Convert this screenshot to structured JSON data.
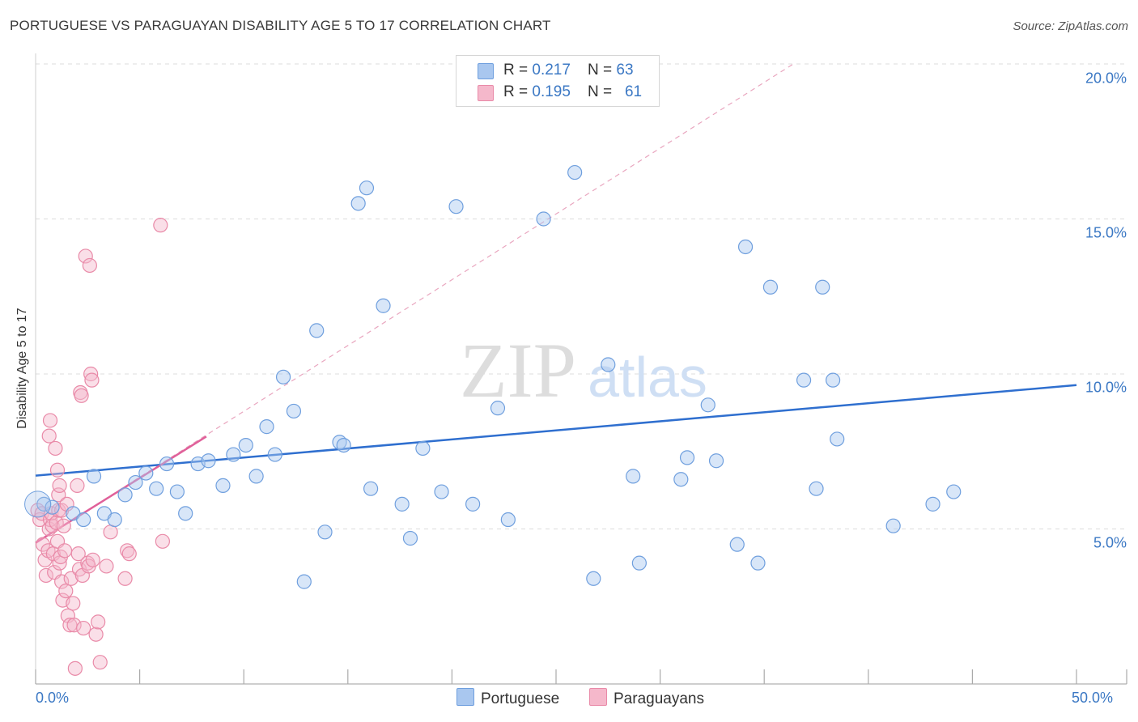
{
  "title": "PORTUGUESE VS PARAGUAYAN DISABILITY AGE 5 TO 17 CORRELATION CHART",
  "source": "Source: ZipAtlas.com",
  "watermark": {
    "zip": "ZIP",
    "atlas": "atlas"
  },
  "colors": {
    "portuguese_fill": "#a9c7ef",
    "portuguese_stroke": "#6f9fde",
    "portuguese_line": "#2f6fcf",
    "paraguayan_fill": "#f5b8cb",
    "paraguayan_stroke": "#e98aa8",
    "paraguayan_line": "#e0609a",
    "axis_label": "#3b78c4",
    "grid": "#dcdcdc"
  },
  "legend": {
    "row1": {
      "r_label": "R = ",
      "r_value": "0.217",
      "n_label": "N = ",
      "n_value": "63"
    },
    "row2": {
      "r_label": "R = ",
      "r_value": "0.195",
      "n_label": "N = ",
      "n_value": "61"
    }
  },
  "chart_data": {
    "type": "scatter",
    "title": "PORTUGUESE VS PARAGUAYAN DISABILITY AGE 5 TO 17 CORRELATION CHART",
    "xlabel": "",
    "ylabel": "Disability Age 5 to 17",
    "xlim": [
      0,
      50
    ],
    "ylim": [
      0,
      20
    ],
    "x_tick_labels": [
      "0.0%",
      "50.0%"
    ],
    "y_tick_labels": [
      "5.0%",
      "10.0%",
      "15.0%",
      "20.0%"
    ],
    "y_ticks": [
      5,
      10,
      15,
      20
    ],
    "grid": true,
    "legend_entries": [
      "Portuguese",
      "Paraguayans"
    ],
    "series": [
      {
        "name": "Portuguese",
        "r": 0.217,
        "n": 63,
        "trend": {
          "x": [
            0,
            50
          ],
          "y": [
            6.72,
            9.64
          ]
        },
        "points": [
          [
            0.4,
            5.8
          ],
          [
            0.8,
            5.7
          ],
          [
            1.8,
            5.5
          ],
          [
            2.3,
            5.3
          ],
          [
            2.8,
            6.7
          ],
          [
            3.3,
            5.5
          ],
          [
            3.8,
            5.3
          ],
          [
            4.3,
            6.1
          ],
          [
            4.8,
            6.5
          ],
          [
            5.3,
            6.8
          ],
          [
            5.8,
            6.3
          ],
          [
            6.3,
            7.1
          ],
          [
            6.8,
            6.2
          ],
          [
            7.2,
            5.5
          ],
          [
            7.8,
            7.1
          ],
          [
            8.3,
            7.2
          ],
          [
            9.0,
            6.4
          ],
          [
            9.5,
            7.4
          ],
          [
            10.1,
            7.7
          ],
          [
            10.6,
            6.7
          ],
          [
            11.1,
            8.3
          ],
          [
            11.5,
            7.4
          ],
          [
            11.9,
            9.9
          ],
          [
            12.4,
            8.8
          ],
          [
            12.9,
            3.3
          ],
          [
            13.5,
            11.4
          ],
          [
            13.9,
            4.9
          ],
          [
            14.6,
            7.8
          ],
          [
            14.8,
            7.7
          ],
          [
            15.5,
            15.5
          ],
          [
            15.9,
            16.0
          ],
          [
            16.1,
            6.3
          ],
          [
            16.7,
            12.2
          ],
          [
            17.6,
            5.8
          ],
          [
            18.0,
            4.7
          ],
          [
            18.6,
            7.6
          ],
          [
            19.5,
            6.2
          ],
          [
            20.2,
            15.4
          ],
          [
            21.0,
            5.8
          ],
          [
            22.2,
            8.9
          ],
          [
            22.7,
            5.3
          ],
          [
            24.4,
            15.0
          ],
          [
            25.9,
            16.5
          ],
          [
            26.8,
            3.4
          ],
          [
            27.5,
            10.3
          ],
          [
            28.7,
            6.7
          ],
          [
            29.0,
            3.9
          ],
          [
            31.0,
            6.6
          ],
          [
            31.3,
            7.3
          ],
          [
            32.3,
            9.0
          ],
          [
            32.7,
            7.2
          ],
          [
            33.7,
            4.5
          ],
          [
            34.7,
            3.9
          ],
          [
            34.1,
            14.1
          ],
          [
            35.3,
            12.8
          ],
          [
            36.9,
            9.8
          ],
          [
            37.8,
            12.8
          ],
          [
            37.5,
            6.3
          ],
          [
            38.5,
            7.9
          ],
          [
            38.3,
            9.8
          ],
          [
            41.2,
            5.1
          ],
          [
            43.1,
            5.8
          ],
          [
            44.1,
            6.2
          ]
        ]
      },
      {
        "name": "Paraguayans",
        "r": 0.195,
        "n": 61,
        "trend": {
          "x": [
            0,
            8.2
          ],
          "y": [
            4.55,
            7.98
          ],
          "extended": {
            "x": [
              0,
              36.4
            ],
            "y": [
              4.55,
              20
            ]
          }
        },
        "points": [
          [
            0.1,
            5.6
          ],
          [
            0.2,
            5.3
          ],
          [
            0.3,
            5.5
          ],
          [
            0.35,
            4.5
          ],
          [
            0.45,
            4.0
          ],
          [
            0.5,
            3.5
          ],
          [
            0.6,
            4.3
          ],
          [
            0.65,
            5.0
          ],
          [
            0.7,
            5.3
          ],
          [
            0.75,
            5.5
          ],
          [
            0.8,
            5.1
          ],
          [
            0.85,
            4.2
          ],
          [
            0.9,
            3.6
          ],
          [
            1.0,
            5.2
          ],
          [
            1.05,
            4.6
          ],
          [
            1.1,
            5.6
          ],
          [
            1.15,
            3.9
          ],
          [
            1.2,
            4.1
          ],
          [
            1.25,
            3.3
          ],
          [
            1.3,
            2.7
          ],
          [
            1.35,
            5.1
          ],
          [
            1.4,
            4.3
          ],
          [
            1.45,
            3.0
          ],
          [
            0.7,
            8.5
          ],
          [
            0.65,
            8.0
          ],
          [
            0.95,
            7.6
          ],
          [
            1.05,
            6.9
          ],
          [
            1.1,
            6.1
          ],
          [
            1.15,
            6.4
          ],
          [
            1.25,
            5.6
          ],
          [
            1.5,
            5.8
          ],
          [
            1.55,
            2.2
          ],
          [
            1.65,
            1.9
          ],
          [
            1.7,
            3.4
          ],
          [
            1.8,
            2.6
          ],
          [
            1.85,
            1.9
          ],
          [
            1.9,
            0.5
          ],
          [
            2.0,
            6.4
          ],
          [
            2.05,
            4.2
          ],
          [
            2.1,
            3.7
          ],
          [
            2.15,
            9.4
          ],
          [
            2.2,
            9.3
          ],
          [
            2.25,
            3.5
          ],
          [
            2.3,
            1.8
          ],
          [
            2.4,
            13.8
          ],
          [
            2.5,
            3.9
          ],
          [
            2.55,
            3.8
          ],
          [
            2.6,
            13.5
          ],
          [
            2.65,
            10.0
          ],
          [
            2.7,
            9.8
          ],
          [
            2.75,
            4.0
          ],
          [
            2.9,
            1.6
          ],
          [
            3.0,
            2.0
          ],
          [
            3.1,
            0.7
          ],
          [
            3.4,
            3.8
          ],
          [
            3.6,
            4.9
          ],
          [
            4.3,
            3.4
          ],
          [
            4.4,
            4.3
          ],
          [
            4.5,
            4.2
          ],
          [
            6.1,
            4.6
          ],
          [
            6.0,
            14.8
          ]
        ]
      }
    ]
  }
}
